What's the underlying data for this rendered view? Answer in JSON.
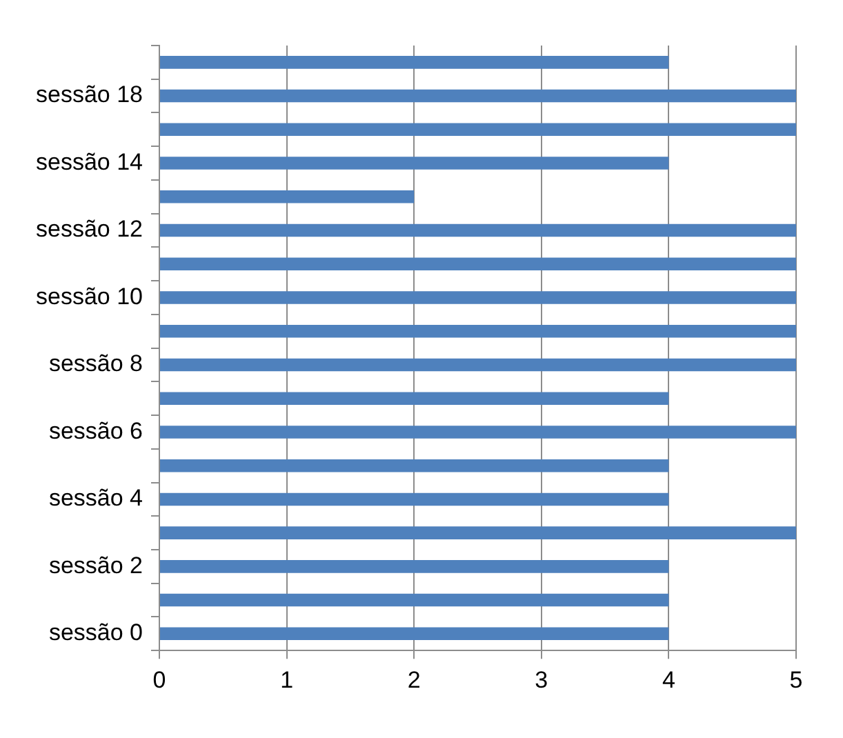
{
  "chart_data": {
    "type": "bar",
    "orientation": "horizontal",
    "categories": [
      null,
      "sessão 18",
      null,
      "sessão 14",
      null,
      "sessão 12",
      null,
      "sessão 10",
      null,
      "sessão 8",
      null,
      "sessão 6",
      null,
      "sessão 4",
      null,
      "sessão 2",
      null,
      "sessão 0"
    ],
    "values": [
      4,
      5,
      5,
      4,
      2,
      5,
      5,
      5,
      5,
      5,
      4,
      5,
      4,
      4,
      5,
      4,
      4,
      4
    ],
    "color": "#4f81bd",
    "xlim": [
      0,
      5
    ],
    "xticks": [
      0,
      1,
      2,
      3,
      4,
      5
    ],
    "grid": "x",
    "legend": false
  }
}
